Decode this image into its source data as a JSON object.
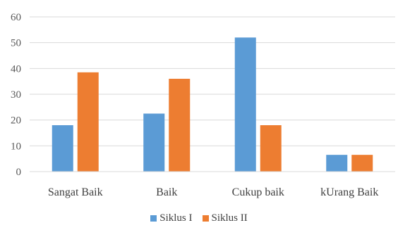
{
  "chart_data": {
    "type": "bar",
    "title": "",
    "xlabel": "",
    "ylabel": "",
    "categories": [
      "Sangat Baik",
      "Baik",
      "Cukup baik",
      "kUrang Baik"
    ],
    "series": [
      {
        "name": "Siklus I",
        "values": [
          18,
          22.5,
          52,
          6.5
        ],
        "color": "#5B9BD5"
      },
      {
        "name": "Siklus II",
        "values": [
          38.5,
          36,
          18,
          6.5
        ],
        "color": "#ED7D31"
      }
    ],
    "ylim": [
      0,
      60
    ],
    "yticks": [
      "0",
      "10",
      "20",
      "30",
      "40",
      "50",
      "60"
    ],
    "grid": true,
    "legend": "bottom-center"
  }
}
